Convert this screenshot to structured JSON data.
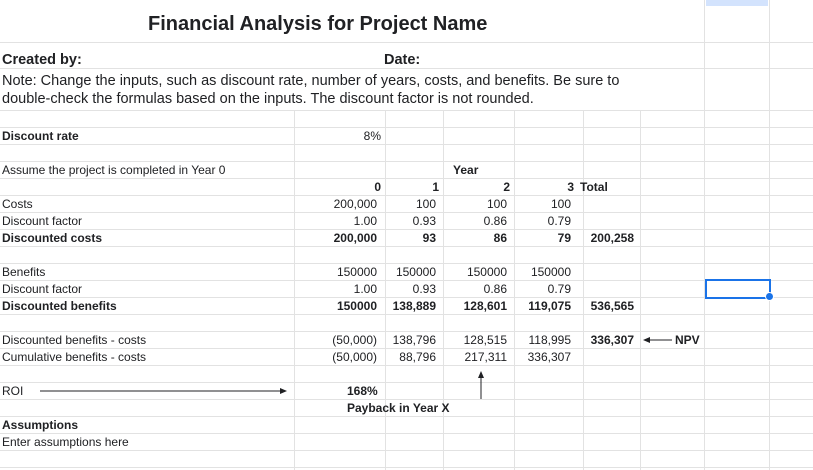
{
  "sheet": {
    "title": "Financial Analysis for Project Name",
    "created_by_label": "Created by:",
    "date_label": "Date:",
    "note_line1": "Note: Change the inputs, such as discount rate, number of years, costs, and benefits. Be sure to",
    "note_line2": "double-check the formulas based on the inputs. The discount factor is not rounded.",
    "discount_rate_label": "Discount rate",
    "discount_rate_value": "8%",
    "assume_label": "Assume the project is completed in Year 0",
    "year_header": "Year",
    "year_cols": [
      "0",
      "1",
      "2",
      "3"
    ],
    "total_label": "Total",
    "costs": {
      "label": "Costs",
      "values": [
        "200,000",
        "100",
        "100",
        "100"
      ]
    },
    "costs_factor": {
      "label": "Discount factor",
      "values": [
        "1.00",
        "0.93",
        "0.86",
        "0.79"
      ]
    },
    "discounted_costs": {
      "label": "Discounted costs",
      "values": [
        "200,000",
        "93",
        "86",
        "79"
      ],
      "total": "200,258"
    },
    "benefits": {
      "label": "Benefits",
      "values": [
        "150000",
        "150000",
        "150000",
        "150000"
      ]
    },
    "benefits_factor": {
      "label": "Discount factor",
      "values": [
        "1.00",
        "0.93",
        "0.86",
        "0.79"
      ]
    },
    "discounted_benefits": {
      "label": "Discounted benefits",
      "values": [
        "150000",
        "138,889",
        "128,601",
        "119,075"
      ],
      "total": "536,565"
    },
    "net": {
      "label": "Discounted benefits - costs",
      "values": [
        "(50,000)",
        "138,796",
        "128,515",
        "118,995"
      ],
      "total": "336,307",
      "npv_label": "NPV"
    },
    "cumulative": {
      "label": "Cumulative benefits - costs",
      "values": [
        "(50,000)",
        "88,796",
        "217,311",
        "336,307"
      ]
    },
    "roi_label": "ROI",
    "roi_value": "168%",
    "payback_label": "Payback in Year X",
    "assumptions_label": "Assumptions",
    "assumptions_text": "Enter assumptions here"
  },
  "colors": {
    "gridline": "#e2e2e2",
    "selection": "#1a73e8",
    "header_selected": "#d3e3fd"
  }
}
